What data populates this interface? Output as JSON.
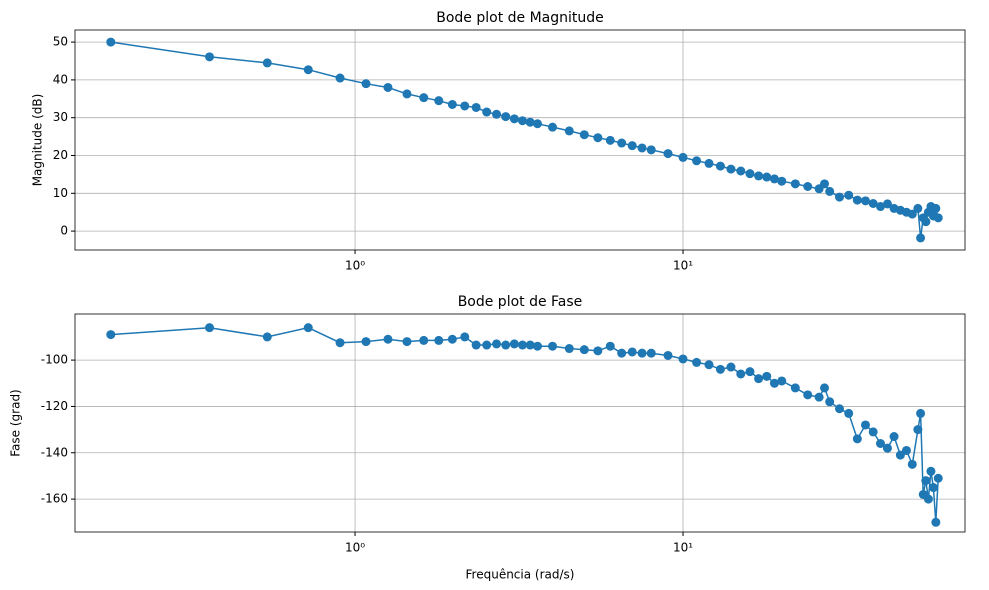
{
  "chart_data": [
    {
      "type": "line",
      "title": "Bode plot de Magnitude",
      "ylabel": "Magnitude (dB)",
      "xscale": "log",
      "grid": true,
      "xlim": [
        0.14,
        72.4
      ],
      "xticks": [
        {
          "value": 1,
          "label": "10⁰"
        },
        {
          "value": 10,
          "label": "10¹"
        }
      ],
      "ylim": [
        -5,
        53.2
      ],
      "yticks": [
        0,
        10,
        20,
        30,
        40,
        50
      ],
      "x": [
        0.18,
        0.36,
        0.54,
        0.72,
        0.9,
        1.08,
        1.26,
        1.44,
        1.62,
        1.8,
        1.98,
        2.16,
        2.34,
        2.52,
        2.7,
        2.88,
        3.06,
        3.24,
        3.42,
        3.6,
        4,
        4.5,
        5,
        5.5,
        6,
        6.5,
        7,
        7.5,
        8,
        9,
        10,
        11,
        12,
        13,
        14,
        15,
        16,
        17,
        18,
        19,
        20,
        22,
        24,
        26,
        27,
        28,
        30,
        32,
        34,
        36,
        38,
        40,
        42,
        44,
        46,
        48,
        50,
        52,
        53,
        54,
        55,
        56,
        57,
        58,
        59,
        60
      ],
      "series": [
        {
          "color": "#1f77b4",
          "values": [
            50,
            46.1,
            44.5,
            42.7,
            40.5,
            39,
            38,
            36.3,
            35.3,
            34.5,
            33.5,
            33.1,
            32.7,
            31.5,
            30.9,
            30.3,
            29.7,
            29.2,
            28.8,
            28.4,
            27.5,
            26.5,
            25.5,
            24.7,
            24,
            23.3,
            22.6,
            22,
            21.5,
            20.5,
            19.5,
            18.6,
            17.9,
            17.2,
            16.4,
            15.9,
            15.2,
            14.6,
            14.3,
            13.8,
            13.2,
            12.5,
            11.8,
            11.2,
            12.5,
            10.5,
            9,
            9.5,
            8.2,
            8,
            7.3,
            6.5,
            7.2,
            6,
            5.5,
            5,
            4.5,
            6,
            -1.8,
            3.5,
            2.5,
            5,
            6.5,
            4,
            6,
            3.5
          ]
        }
      ]
    },
    {
      "type": "line",
      "title": "Bode plot de Fase",
      "ylabel": "Fase (grad)",
      "xlabel": "Frequência (rad/s)",
      "xscale": "log",
      "grid": true,
      "xlim": [
        0.14,
        72.4
      ],
      "xticks": [
        {
          "value": 1,
          "label": "10⁰"
        },
        {
          "value": 10,
          "label": "10¹"
        }
      ],
      "ylim": [
        -174.2,
        -80.1
      ],
      "yticks": [
        -160,
        -140,
        -120,
        -100
      ],
      "x": [
        0.18,
        0.36,
        0.54,
        0.72,
        0.9,
        1.08,
        1.26,
        1.44,
        1.62,
        1.8,
        1.98,
        2.16,
        2.34,
        2.52,
        2.7,
        2.88,
        3.06,
        3.24,
        3.42,
        3.6,
        4,
        4.5,
        5,
        5.5,
        6,
        6.5,
        7,
        7.5,
        8,
        9,
        10,
        11,
        12,
        13,
        14,
        15,
        16,
        17,
        18,
        19,
        20,
        22,
        24,
        26,
        27,
        28,
        30,
        32,
        34,
        36,
        38,
        40,
        42,
        44,
        46,
        48,
        50,
        52,
        53,
        54,
        55,
        56,
        57,
        58,
        59,
        60
      ],
      "series": [
        {
          "color": "#1f77b4",
          "values": [
            -89,
            -86,
            -90,
            -86,
            -92.5,
            -92,
            -91,
            -92,
            -91.5,
            -91.5,
            -91,
            -90,
            -93.5,
            -93.5,
            -93,
            -93.5,
            -93,
            -93.5,
            -93.5,
            -94,
            -94,
            -95,
            -95.5,
            -96,
            -94,
            -97,
            -96.5,
            -97,
            -97,
            -98,
            -99.5,
            -101,
            -102,
            -104,
            -103,
            -106,
            -105,
            -108,
            -107,
            -110,
            -109,
            -112,
            -115,
            -116,
            -112,
            -118,
            -121,
            -123,
            -134,
            -128,
            -131,
            -136,
            -138,
            -133,
            -141,
            -139,
            -145,
            -130,
            -123,
            -158,
            -152,
            -160,
            -148,
            -155,
            -170,
            -151
          ]
        }
      ]
    }
  ]
}
